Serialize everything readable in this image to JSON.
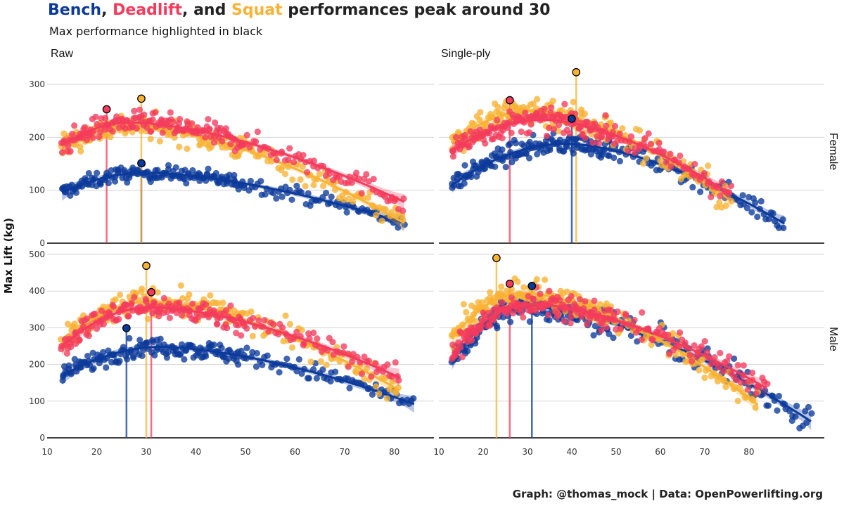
{
  "title": {
    "bench": "Bench",
    "sep1": ", ",
    "deadlift": "Deadlift",
    "sep2": ", and ",
    "squat": "Squat",
    "rest": " performances peak around 30"
  },
  "subtitle": "Max performance highlighted in black",
  "caption": "Graph: @thomas_mock | Data: OpenPowerlifting.org",
  "colors": {
    "bench": "#0c3a9a",
    "deadlift": "#f43b5c",
    "squat": "#f9b233",
    "title_text": "#222222"
  },
  "chart_data": {
    "type": "scatter",
    "xlabel": "",
    "ylabel": "Max Lift (kg)",
    "x_ticks": [
      10,
      20,
      30,
      40,
      50,
      60,
      70,
      80
    ],
    "facet_columns": [
      "Raw",
      "Single-ply"
    ],
    "facet_rows": [
      "Female",
      "Male"
    ],
    "row_ylim": {
      "Female": [
        0,
        320
      ],
      "Male": [
        0,
        500
      ]
    },
    "row_yticks": {
      "Female": [
        0,
        100,
        200,
        300
      ],
      "Male": [
        0,
        100,
        200,
        300,
        400,
        500
      ]
    },
    "series_names": [
      "Bench",
      "Deadlift",
      "Squat"
    ],
    "panels": [
      {
        "row": "Female",
        "column": "Raw",
        "xlim": [
          10,
          88
        ],
        "series": [
          {
            "name": "Bench",
            "age_range": [
              13,
              82
            ],
            "peak_age": 30,
            "curve_peak": 133,
            "start": 95,
            "end": 38,
            "spread": 14,
            "max_point": {
              "x": 29,
              "y": 151
            }
          },
          {
            "name": "Deadlift",
            "age_range": [
              13,
              82
            ],
            "peak_age": 27,
            "curve_peak": 228,
            "start": 185,
            "end": 78,
            "spread": 20,
            "max_point": {
              "x": 22,
              "y": 253
            }
          },
          {
            "name": "Squat",
            "age_range": [
              13,
              82
            ],
            "peak_age": 27,
            "curve_peak": 222,
            "start": 180,
            "end": 38,
            "spread": 22,
            "max_point": {
              "x": 29,
              "y": 273
            }
          }
        ]
      },
      {
        "row": "Female",
        "column": "Single-ply",
        "xlim": [
          10,
          97
        ],
        "series": [
          {
            "name": "Bench",
            "age_range": [
              13,
              88
            ],
            "peak_age": 39,
            "curve_peak": 188,
            "start": 110,
            "end": 37,
            "spread": 18,
            "max_point": {
              "x": 40,
              "y": 235
            }
          },
          {
            "name": "Deadlift",
            "age_range": [
              13,
              76
            ],
            "peak_age": 34,
            "curve_peak": 233,
            "start": 175,
            "end": 92,
            "spread": 22,
            "max_point": {
              "x": 26,
              "y": 270
            }
          },
          {
            "name": "Squat",
            "age_range": [
              13,
              76
            ],
            "peak_age": 31,
            "curve_peak": 250,
            "start": 190,
            "end": 80,
            "spread": 30,
            "max_point": {
              "x": 41,
              "y": 323
            }
          }
        ]
      },
      {
        "row": "Male",
        "column": "Raw",
        "xlim": [
          10,
          88
        ],
        "series": [
          {
            "name": "Bench",
            "age_range": [
              13,
              84
            ],
            "peak_age": 33,
            "curve_peak": 248,
            "start": 168,
            "end": 92,
            "spread": 25,
            "max_point": {
              "x": 26,
              "y": 299
            }
          },
          {
            "name": "Deadlift",
            "age_range": [
              13,
              81
            ],
            "peak_age": 31,
            "curve_peak": 356,
            "start": 250,
            "end": 165,
            "spread": 30,
            "max_point": {
              "x": 31,
              "y": 397
            }
          },
          {
            "name": "Squat",
            "age_range": [
              13,
              81
            ],
            "peak_age": 31,
            "curve_peak": 372,
            "start": 250,
            "end": 130,
            "spread": 35,
            "max_point": {
              "x": 30,
              "y": 469
            }
          }
        ]
      },
      {
        "row": "Male",
        "column": "Single-ply",
        "xlim": [
          10,
          97
        ],
        "series": [
          {
            "name": "Bench",
            "age_range": [
              13,
              94
            ],
            "peak_age": 30,
            "curve_peak": 358,
            "start": 210,
            "end": 45,
            "spread": 35,
            "max_point": {
              "x": 31,
              "y": 414
            }
          },
          {
            "name": "Deadlift",
            "age_range": [
              13,
              84
            ],
            "peak_age": 31,
            "curve_peak": 365,
            "start": 230,
            "end": 135,
            "spread": 35,
            "max_point": {
              "x": 26,
              "y": 420
            }
          },
          {
            "name": "Squat",
            "age_range": [
              13,
              82
            ],
            "peak_age": 29,
            "curve_peak": 395,
            "start": 270,
            "end": 90,
            "spread": 38,
            "max_point": {
              "x": 23,
              "y": 490
            }
          }
        ]
      }
    ]
  }
}
